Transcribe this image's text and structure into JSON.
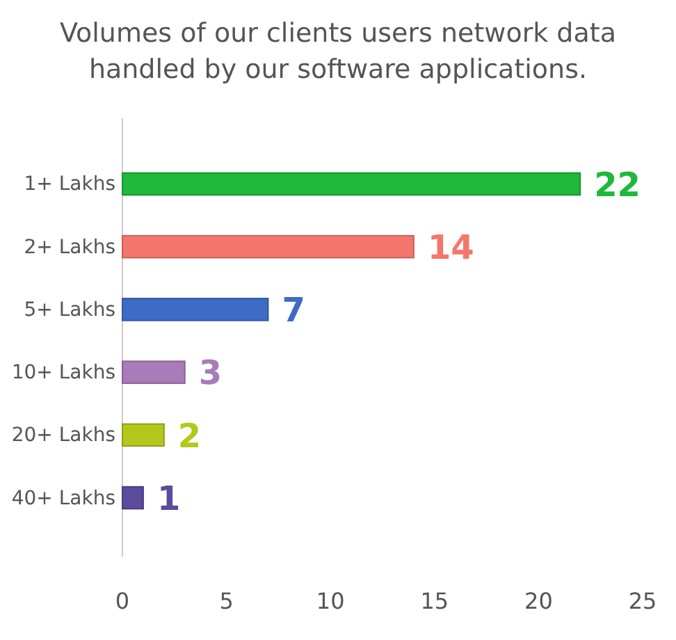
{
  "chart_data": {
    "type": "bar",
    "orientation": "horizontal",
    "title": "Volumes of our clients users network data handled by our software applications.",
    "categories": [
      "1+ Lakhs",
      "2+ Lakhs",
      "5+ Lakhs",
      "10+ Lakhs",
      "20+ Lakhs",
      "40+ Lakhs"
    ],
    "values": [
      22,
      14,
      7,
      3,
      2,
      1
    ],
    "colors": [
      "#1fb83a",
      "#f4776d",
      "#3d6cc4",
      "#a97bb8",
      "#b3c81b",
      "#5a4b9c"
    ],
    "xlim": [
      0,
      25
    ],
    "xticks": [
      0,
      5,
      10,
      15,
      20,
      25
    ],
    "grid": false,
    "data_labels": true
  }
}
